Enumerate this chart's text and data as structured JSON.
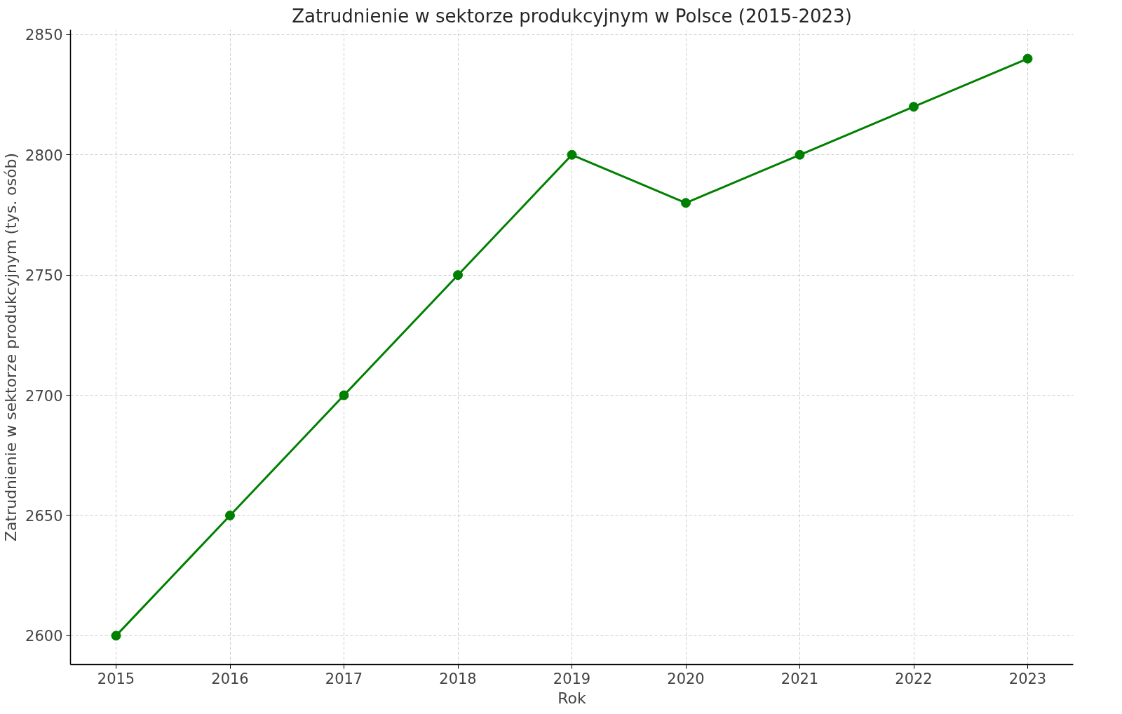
{
  "chart_data": {
    "type": "line",
    "title": "Zatrudnienie w sektorze produkcyjnym w Polsce (2015-2023)",
    "xlabel": "Rok",
    "ylabel": "Zatrudnienie w sektorze produkcyjnym (tys. osób)",
    "x": [
      2015,
      2016,
      2017,
      2018,
      2019,
      2020,
      2021,
      2022,
      2023
    ],
    "series": [
      {
        "color": "#008000",
        "values": [
          2600,
          2650,
          2700,
          2750,
          2800,
          2780,
          2800,
          2820,
          2840
        ]
      }
    ],
    "xlim": [
      2014.6,
      2023.4
    ],
    "ylim": [
      2588,
      2852
    ],
    "xticks": [
      2015,
      2016,
      2017,
      2018,
      2019,
      2020,
      2021,
      2022,
      2023
    ],
    "yticks": [
      2600,
      2650,
      2700,
      2750,
      2800,
      2850
    ],
    "grid": true,
    "marker": "circle",
    "line_style": "solid"
  }
}
